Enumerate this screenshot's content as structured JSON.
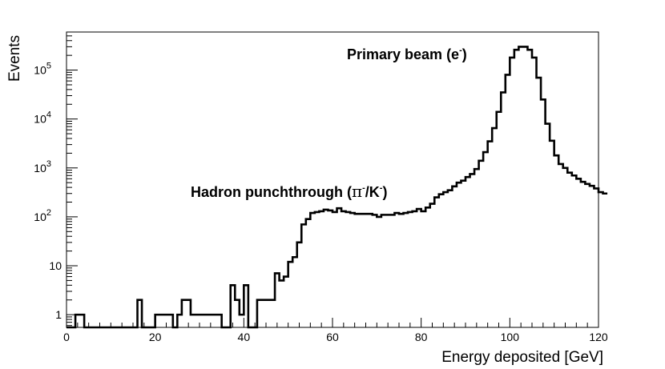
{
  "chart_data": {
    "type": "histogram",
    "xlabel": "Energy deposited [GeV]",
    "ylabel": "Events",
    "xlim": [
      0,
      120
    ],
    "ylim": [
      0.55,
      600000
    ],
    "yscale": "log",
    "grid": false,
    "x_ticks": [
      {
        "value": 0,
        "label": "0"
      },
      {
        "value": 20,
        "label": "20"
      },
      {
        "value": 40,
        "label": "40"
      },
      {
        "value": 60,
        "label": "60"
      },
      {
        "value": 80,
        "label": "80"
      },
      {
        "value": 100,
        "label": "100"
      },
      {
        "value": 120,
        "label": "120"
      }
    ],
    "y_ticks": [
      {
        "value": 1,
        "base": "1",
        "exp": ""
      },
      {
        "value": 10,
        "base": "10",
        "exp": ""
      },
      {
        "value": 100,
        "base": "10",
        "exp": "2"
      },
      {
        "value": 1000,
        "base": "10",
        "exp": "3"
      },
      {
        "value": 10000,
        "base": "10",
        "exp": "4"
      },
      {
        "value": 100000,
        "base": "10",
        "exp": "5"
      }
    ],
    "bin_width": 1,
    "bin_start": 0,
    "counts": [
      0,
      0,
      1,
      1,
      0,
      0,
      0,
      0,
      0,
      0,
      0,
      0,
      0,
      0,
      0,
      0,
      2,
      0,
      0,
      0,
      1,
      1,
      1,
      1,
      0,
      1,
      2,
      2,
      1,
      1,
      1,
      1,
      1,
      1,
      1,
      0,
      0,
      4,
      2,
      1,
      4,
      0,
      0,
      2,
      2,
      2,
      2,
      7,
      5,
      6,
      12,
      15,
      30,
      70,
      90,
      120,
      125,
      130,
      140,
      135,
      125,
      150,
      130,
      125,
      120,
      115,
      115,
      115,
      115,
      110,
      100,
      110,
      110,
      110,
      120,
      115,
      120,
      125,
      130,
      145,
      130,
      155,
      185,
      250,
      290,
      320,
      350,
      420,
      500,
      550,
      650,
      750,
      950,
      1400,
      2100,
      3500,
      6500,
      14000,
      35000,
      80000,
      180000,
      260000,
      300000,
      300000,
      260000,
      180000,
      70000,
      25000,
      8000,
      3600,
      1800,
      1200,
      1000,
      800,
      700,
      600,
      520,
      470,
      430,
      380,
      320,
      300
    ],
    "annotations": [
      {
        "text": "Primary beam (e",
        "sup": "-",
        "tail": ")",
        "x": 92,
        "y": 300000
      },
      {
        "text": "Hadron punchthrough (",
        "greek": "π",
        "sup": "-",
        "mid": "/K",
        "sup2": "-",
        "tail": ")",
        "x": 56,
        "y": 180
      }
    ]
  }
}
